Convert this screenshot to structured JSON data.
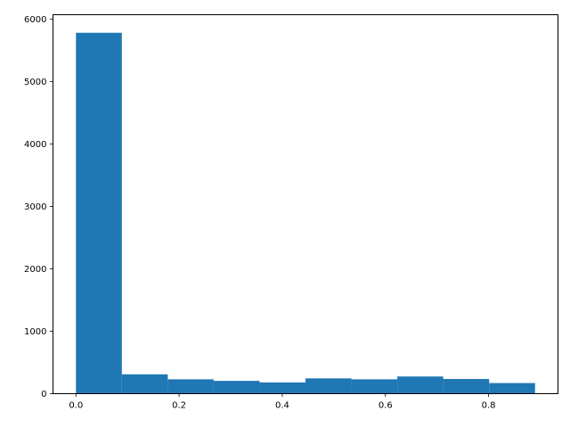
{
  "chart_data": {
    "type": "bar",
    "histogram": true,
    "bin_edges": [
      0.0,
      0.089,
      0.178,
      0.267,
      0.356,
      0.445,
      0.534,
      0.623,
      0.712,
      0.801,
      0.89
    ],
    "values": [
      5780,
      310,
      230,
      205,
      180,
      245,
      230,
      275,
      235,
      170
    ],
    "title": "",
    "xlabel": "",
    "ylabel": "",
    "xlim": [
      -0.0445,
      0.9345
    ],
    "ylim": [
      0,
      6069
    ],
    "x_ticks": [
      0.0,
      0.2,
      0.4,
      0.6,
      0.8
    ],
    "x_tick_labels": [
      "0.0",
      "0.2",
      "0.4",
      "0.6",
      "0.8"
    ],
    "y_ticks": [
      0,
      1000,
      2000,
      3000,
      4000,
      5000,
      6000
    ],
    "y_tick_labels": [
      "0",
      "1000",
      "2000",
      "3000",
      "4000",
      "5000",
      "6000"
    ],
    "grid": false,
    "legend": "none",
    "bar_color": "#1f77b4"
  }
}
